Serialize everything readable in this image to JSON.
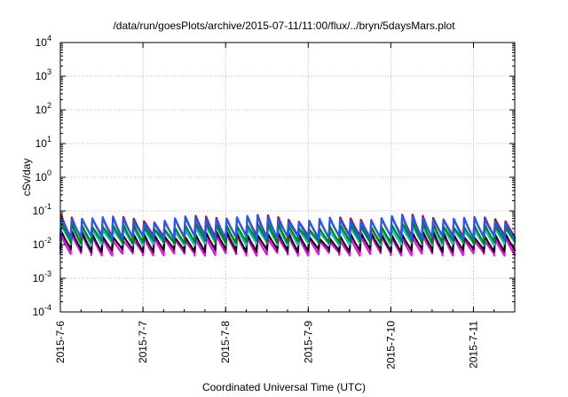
{
  "chart_data": {
    "type": "line",
    "title": "/data/run/goesPlots/archive/2015-07-11/11:00/flux/../bryn/5daysMars.plot",
    "xlabel": "Coordinated Universal Time (UTC)",
    "ylabel": "cSv/day",
    "yscale": "log",
    "ylim": [
      0.0001,
      10000
    ],
    "xlim": [
      "2015-07-06T00:00",
      "2015-07-11T12:00"
    ],
    "grid": true,
    "legend": "none",
    "x_ticks": [
      {
        "label": "2015-7-6",
        "at": "2015-07-06"
      },
      {
        "label": "2015-7-7",
        "at": "2015-07-07"
      },
      {
        "label": "2015-7-8",
        "at": "2015-07-08"
      },
      {
        "label": "2015-7-9",
        "at": "2015-07-09"
      },
      {
        "label": "2015-7-10",
        "at": "2015-07-10"
      },
      {
        "label": "2015-7-11",
        "at": "2015-07-11"
      }
    ],
    "y_ticks": [
      {
        "base": "10",
        "exp": "4",
        "value": 10000
      },
      {
        "base": "10",
        "exp": "3",
        "value": 1000
      },
      {
        "base": "10",
        "exp": "2",
        "value": 100
      },
      {
        "base": "10",
        "exp": "1",
        "value": 10
      },
      {
        "base": "10",
        "exp": "0",
        "value": 1
      },
      {
        "base": "10",
        "exp": "-1",
        "value": 0.1
      },
      {
        "base": "10",
        "exp": "-2",
        "value": 0.01
      },
      {
        "base": "10",
        "exp": "-3",
        "value": 0.001
      },
      {
        "base": "10",
        "exp": "-4",
        "value": 0.0001
      }
    ],
    "cycle_hours": 3,
    "series": [
      {
        "color": "#ff00ff",
        "peak": 0.016,
        "trough": 0.0055
      },
      {
        "color": "#000000",
        "peak": 0.02,
        "trough": 0.007
      },
      {
        "color": "#00cccc",
        "peak": 0.03,
        "trough": 0.011
      },
      {
        "color": "#008000",
        "peak": 0.037,
        "trough": 0.013
      },
      {
        "color": "#cc0000",
        "peak": 0.062,
        "trough": 0.018
      },
      {
        "color": "#1e5aff",
        "peak": 0.058,
        "trough": 0.017
      }
    ]
  }
}
